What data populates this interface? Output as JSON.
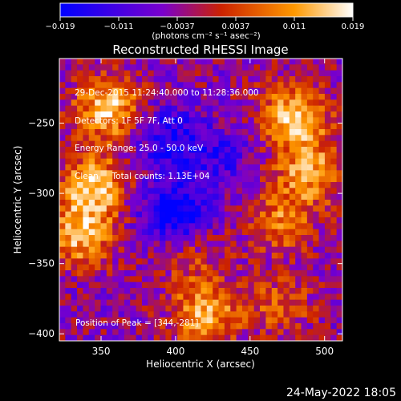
{
  "chart_data": {
    "type": "heatmap",
    "title": "Reconstructed RHESSI Image",
    "xlabel": "Heliocentric X (arcsec)",
    "ylabel": "Heliocentric Y (arcsec)",
    "xlim": [
      322,
      512
    ],
    "ylim": [
      -405,
      -204
    ],
    "x_ticks": [
      350,
      400,
      450,
      500
    ],
    "y_ticks": [
      -250,
      -300,
      -350,
      -400
    ],
    "colorbar": {
      "label": "(photons cm⁻² s⁻¹ asec⁻²)",
      "min": -0.019,
      "max": 0.019,
      "ticks": [
        "−0.019",
        "−0.011",
        "−0.0037",
        "0.0037",
        "0.011",
        "0.019"
      ],
      "colormap": [
        "#0000ff",
        "#7a00cc",
        "#cc2200",
        "#ff9900",
        "#ffffff"
      ]
    },
    "annotations": {
      "time_range": "29-Dec-2015 11:24:40.000 to 11:28:36.000",
      "detectors": "Detectors: 1F 5F 7F, Att 0",
      "energy_range": "Energy Range: 25.0 - 50.0 keV",
      "clean": "Clean",
      "total_counts": "Total counts: 1.13E+04",
      "peak_position": "Position of Peak = [344,-281]"
    },
    "sources": [
      {
        "x": 355,
        "y": -240,
        "value": 0.019
      },
      {
        "x": 345,
        "y": -295,
        "value": 0.019
      },
      {
        "x": 335,
        "y": -330,
        "value": 0.017
      },
      {
        "x": 480,
        "y": -245,
        "value": 0.019
      },
      {
        "x": 490,
        "y": -285,
        "value": 0.016
      },
      {
        "x": 470,
        "y": -320,
        "value": 0.012
      },
      {
        "x": 420,
        "y": -385,
        "value": 0.017
      },
      {
        "x": 470,
        "y": -380,
        "value": 0.009
      },
      {
        "x": 410,
        "y": -340,
        "value": 0.008
      },
      {
        "x": 400,
        "y": -315,
        "value": -0.019
      },
      {
        "x": 395,
        "y": -260,
        "value": -0.012
      },
      {
        "x": 430,
        "y": -275,
        "value": -0.008
      }
    ]
  },
  "footer": {
    "date": "24-May-2022 18:05"
  },
  "colors": {
    "background": "#000000",
    "text": "#ffffff"
  }
}
